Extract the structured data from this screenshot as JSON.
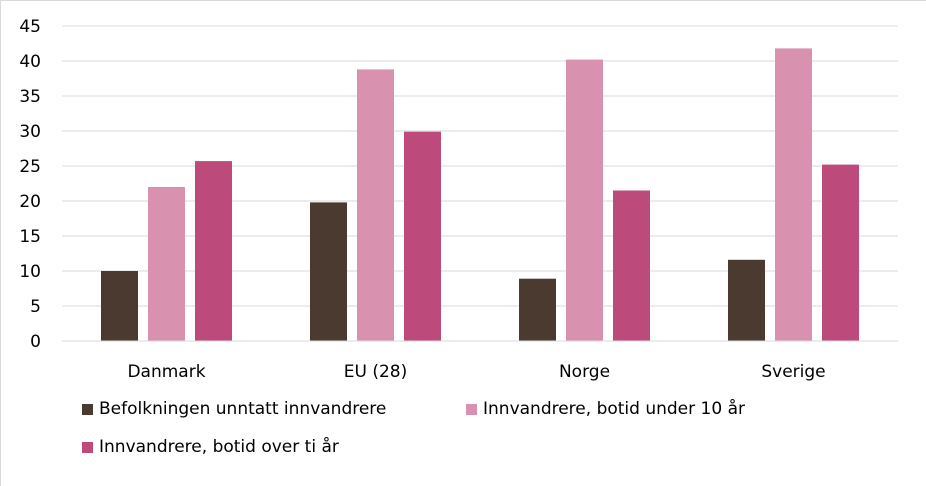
{
  "chart_data": {
    "type": "bar",
    "categories": [
      "Danmark",
      "EU (28)",
      "Norge",
      "Sverige"
    ],
    "series": [
      {
        "name": "Befolkningen unntatt innvandrere",
        "values": [
          10.0,
          19.8,
          8.9,
          11.6
        ],
        "color": "#4a3a30"
      },
      {
        "name": "Innvandrere, botid under 10 år",
        "values": [
          22.0,
          38.8,
          40.2,
          41.8
        ],
        "color": "#d891af"
      },
      {
        "name": "Innvandrere, botid over ti år",
        "values": [
          25.7,
          29.9,
          21.5,
          25.2
        ],
        "color": "#bc4a7b"
      }
    ],
    "yticks": [
      0,
      5,
      10,
      15,
      20,
      25,
      30,
      35,
      40,
      45
    ],
    "ylim": [
      0,
      45
    ],
    "grid": true,
    "legend_position": "bottom",
    "title": "",
    "xlabel": "",
    "ylabel": ""
  }
}
